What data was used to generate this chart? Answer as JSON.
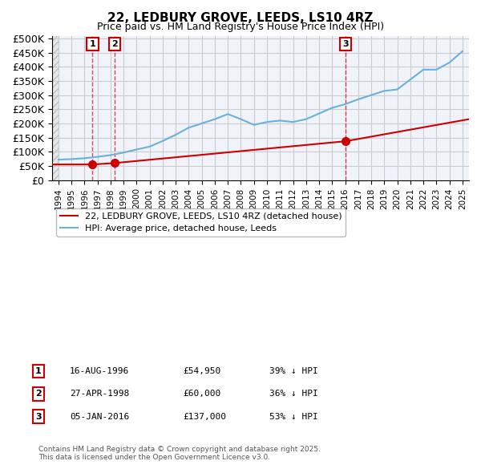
{
  "title": "22, LEDBURY GROVE, LEEDS, LS10 4RZ",
  "subtitle": "Price paid vs. HM Land Registry's House Price Index (HPI)",
  "hpi_label": "HPI: Average price, detached house, Leeds",
  "property_label": "22, LEDBURY GROVE, LEEDS, LS10 4RZ (detached house)",
  "ylabel_ticks": [
    "£0",
    "£50K",
    "£100K",
    "£150K",
    "£200K",
    "£250K",
    "£300K",
    "£350K",
    "£400K",
    "£450K",
    "£500K"
  ],
  "ytick_values": [
    0,
    50000,
    100000,
    150000,
    200000,
    250000,
    300000,
    350000,
    400000,
    450000,
    500000
  ],
  "xmin": 1993.5,
  "xmax": 2025.5,
  "ymin": 0,
  "ymax": 510000,
  "hpi_color": "#6ab0de",
  "property_color": "#cc0000",
  "annotation_box_color": "#cc0000",
  "annotation_text_color": "#000000",
  "background_hatch_color": "#e8e8e8",
  "grid_color": "#cccccc",
  "footnote": "Contains HM Land Registry data © Crown copyright and database right 2025.\nThis data is licensed under the Open Government Licence v3.0.",
  "transactions": [
    {
      "num": 1,
      "date": "16-AUG-1996",
      "price": 54950,
      "year": 1996.62,
      "pct": "39% ↓ HPI"
    },
    {
      "num": 2,
      "date": "27-APR-1998",
      "price": 60000,
      "year": 1998.32,
      "pct": "36% ↓ HPI"
    },
    {
      "num": 3,
      "date": "05-JAN-2016",
      "price": 137000,
      "year": 2016.02,
      "pct": "53% ↓ HPI"
    }
  ],
  "hpi_years": [
    1994,
    1995,
    1996,
    1997,
    1998,
    1999,
    2000,
    2001,
    2002,
    2003,
    2004,
    2005,
    2006,
    2007,
    2008,
    2009,
    2010,
    2011,
    2012,
    2013,
    2014,
    2015,
    2016,
    2017,
    2018,
    2019,
    2020,
    2021,
    2022,
    2023,
    2024,
    2025
  ],
  "hpi_values": [
    72000,
    74000,
    77000,
    82000,
    88000,
    97000,
    108000,
    118000,
    138000,
    160000,
    185000,
    200000,
    215000,
    233000,
    215000,
    195000,
    205000,
    210000,
    205000,
    215000,
    235000,
    255000,
    268000,
    285000,
    300000,
    315000,
    320000,
    355000,
    390000,
    390000,
    415000,
    455000
  ],
  "property_years": [
    1993.5,
    1996.62,
    1998.32,
    2016.02,
    2025.5
  ],
  "property_values": [
    54950,
    54950,
    60000,
    137000,
    215000
  ]
}
